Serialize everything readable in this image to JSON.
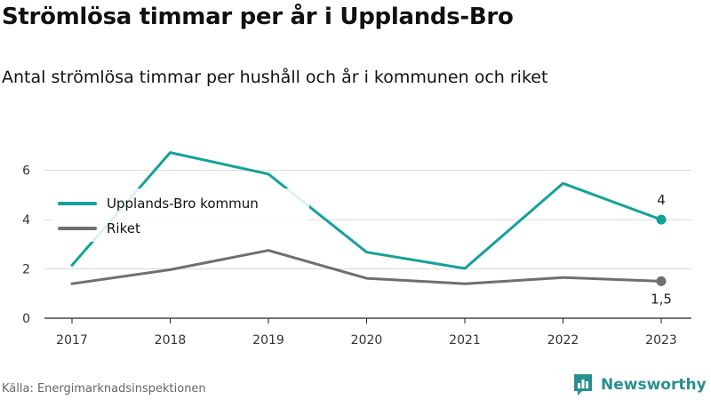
{
  "title": "Strömlösa timmar per år i Upplands-Bro",
  "subtitle": "Antal strömlösa timmar per hushåll och år i kommunen och riket",
  "source": "Källa: Energimarknadsinspektionen",
  "brand": {
    "name": "Newsworthy",
    "icon": "newsworthy-logo-icon"
  },
  "chart_data": {
    "type": "line",
    "categories": [
      "2017",
      "2018",
      "2019",
      "2020",
      "2021",
      "2022",
      "2023"
    ],
    "series": [
      {
        "name": "Upplands-Bro kommun",
        "color": "#14a19a",
        "values": [
          2.15,
          6.72,
          5.85,
          2.68,
          2.02,
          5.47,
          4.0
        ]
      },
      {
        "name": "Riket",
        "color": "#6e6e74",
        "values": [
          1.4,
          1.97,
          2.75,
          1.62,
          1.4,
          1.65,
          1.5
        ]
      }
    ],
    "end_labels": [
      "4",
      "1,5"
    ],
    "y_ticks": [
      "0",
      "2",
      "4",
      "6"
    ],
    "ylim": [
      0,
      7.5
    ],
    "grid": true,
    "legend_position": "top-left"
  }
}
